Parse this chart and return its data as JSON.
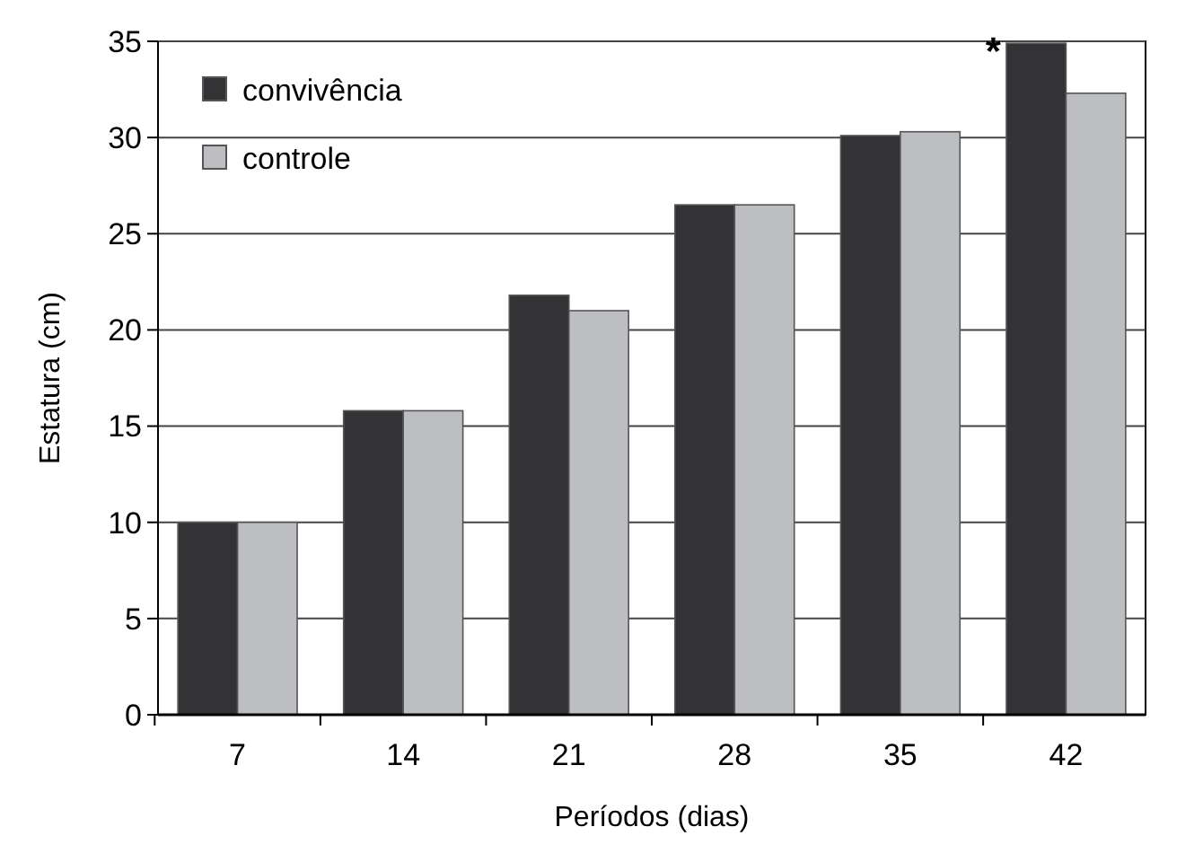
{
  "chart_data": {
    "type": "bar",
    "xlabel": "Períodos (dias)",
    "ylabel": "Estatura (cm)",
    "categories": [
      "7",
      "14",
      "21",
      "28",
      "35",
      "42"
    ],
    "series": [
      {
        "name": "convivência",
        "color": "#333335",
        "values": [
          10,
          15.8,
          21.8,
          26.5,
          30.1,
          34.9
        ]
      },
      {
        "name": "controle",
        "color": "#bcbec1",
        "values": [
          10,
          15.8,
          21,
          26.5,
          30.3,
          32.3
        ]
      }
    ],
    "ylim": [
      0,
      35
    ],
    "yticks": [
      0,
      5,
      10,
      15,
      20,
      25,
      30,
      35
    ],
    "grid": "y",
    "legend": "top left",
    "annotations": [
      {
        "text": "*",
        "x": "42",
        "y": 34.9
      }
    ]
  }
}
